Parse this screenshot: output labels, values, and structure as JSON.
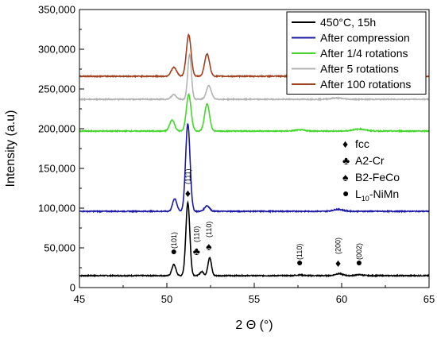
{
  "chart_data": {
    "type": "line",
    "xlabel": "2 Θ (°)",
    "ylabel": "Intensity (a.u)",
    "xlim": [
      45,
      65
    ],
    "ylim": [
      0,
      350000
    ],
    "x_ticks": [
      45,
      50,
      55,
      60,
      65
    ],
    "x_tick_labels": [
      "45",
      "50",
      "55",
      "60",
      "65"
    ],
    "y_ticks": [
      0,
      50000,
      100000,
      150000,
      200000,
      250000,
      300000,
      350000
    ],
    "y_tick_labels": [
      "0",
      "50,000",
      "100,000",
      "150,000",
      "200,000",
      "250,000",
      "300,000",
      "350,000"
    ],
    "grid": false,
    "legend_position": "top-right",
    "series": [
      {
        "name": "450°C, 15h",
        "color": "#000000",
        "baseline": 15000,
        "peaks": [
          {
            "x": 50.4,
            "height": 14000,
            "width": 0.16
          },
          {
            "x": 51.2,
            "height": 92000,
            "width": 0.16
          },
          {
            "x": 52.0,
            "height": 5000,
            "width": 0.15
          },
          {
            "x": 52.45,
            "height": 23000,
            "width": 0.14
          },
          {
            "x": 57.6,
            "height": 800,
            "width": 0.3
          },
          {
            "x": 59.85,
            "height": 2500,
            "width": 0.3
          },
          {
            "x": 61.0,
            "height": 1200,
            "width": 0.3
          }
        ]
      },
      {
        "name": "After compression",
        "color": "#1a1aa6",
        "baseline": 96000,
        "peaks": [
          {
            "x": 50.45,
            "height": 16000,
            "width": 0.17
          },
          {
            "x": 51.2,
            "height": 110000,
            "width": 0.18
          },
          {
            "x": 52.3,
            "height": 7000,
            "width": 0.2
          },
          {
            "x": 59.8,
            "height": 2500,
            "width": 0.4
          }
        ]
      },
      {
        "name": "After 1/4 rotations",
        "color": "#44d62c",
        "baseline": 197000,
        "peaks": [
          {
            "x": 50.3,
            "height": 14000,
            "width": 0.2
          },
          {
            "x": 51.25,
            "height": 46000,
            "width": 0.19
          },
          {
            "x": 52.3,
            "height": 34000,
            "width": 0.2
          },
          {
            "x": 57.6,
            "height": 1500,
            "width": 0.4
          },
          {
            "x": 61.0,
            "height": 2500,
            "width": 0.5
          }
        ]
      },
      {
        "name": "After 5 rotations",
        "color": "#b3b3b3",
        "baseline": 237000,
        "peaks": [
          {
            "x": 50.4,
            "height": 6000,
            "width": 0.2
          },
          {
            "x": 51.3,
            "height": 56000,
            "width": 0.15
          },
          {
            "x": 52.4,
            "height": 17000,
            "width": 0.2
          },
          {
            "x": 59.7,
            "height": 1500,
            "width": 0.5
          }
        ]
      },
      {
        "name": "After 100 rotations",
        "color": "#a0401f",
        "baseline": 266000,
        "peaks": [
          {
            "x": 50.4,
            "height": 11000,
            "width": 0.22
          },
          {
            "x": 51.25,
            "height": 52000,
            "width": 0.19
          },
          {
            "x": 52.3,
            "height": 28000,
            "width": 0.2
          }
        ]
      }
    ],
    "phase_legend": [
      {
        "symbol": "♦",
        "label": "fcc"
      },
      {
        "symbol": "♣",
        "label": "A2-Cr"
      },
      {
        "symbol": "♠",
        "label": "B2-FeCo"
      },
      {
        "symbol": "●",
        "label": "L10-NiMn",
        "label_main": "L",
        "label_sub": "10",
        "label_rest": "-NiMn"
      }
    ],
    "annotations": [
      {
        "x": 50.4,
        "y": 41000,
        "symbol": "●",
        "hkl": "(101)"
      },
      {
        "x": 51.2,
        "y": 118000,
        "symbol": "♦",
        "hkl": "(111)"
      },
      {
        "x": 51.7,
        "y": 45000,
        "symbol": "♣",
        "hkl": "(110)"
      },
      {
        "x": 52.4,
        "y": 51000,
        "symbol": "♠",
        "hkl": "(110)"
      },
      {
        "x": 57.6,
        "y": 27000,
        "symbol": "●",
        "hkl": "(110)"
      },
      {
        "x": 59.8,
        "y": 30000,
        "symbol": "♦",
        "hkl": "(200)"
      },
      {
        "x": 61.0,
        "y": 27000,
        "symbol": "●",
        "hkl": "(002)"
      }
    ]
  }
}
